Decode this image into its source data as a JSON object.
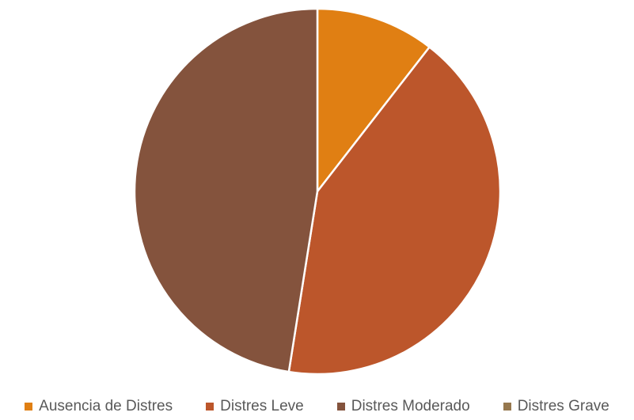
{
  "chart_data": {
    "type": "pie",
    "categories": [
      "Ausencia de Distres",
      "Distres Leve",
      "Distres Moderado",
      "Distres Grave"
    ],
    "values": [
      10.5,
      42.0,
      47.5,
      0.0
    ],
    "colors": [
      "#E07F13",
      "#BC562B",
      "#84533D",
      "#96784E"
    ],
    "start_angle": "12 o'clock",
    "direction": "clockwise",
    "legend": {
      "position": "bottom"
    }
  }
}
